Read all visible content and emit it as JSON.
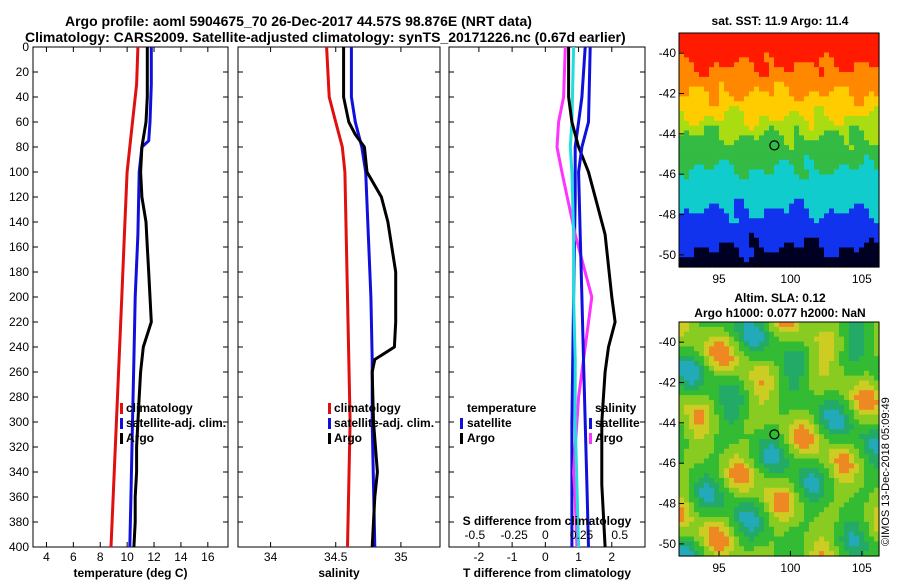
{
  "header": {
    "line1": "Argo profile: aoml 5904675_70 26-Dec-2017 44.57S 98.876E (NRT data)",
    "line2": "Climatology: CARS2009. Satellite-adjusted climatology: synTS_20171226.nc (0.67d earlier)"
  },
  "colors": {
    "climatology": "#e01010",
    "satellite": "#1010dd",
    "argo": "#000000",
    "salinity_diff_climatology": "#ff33ff",
    "temperature_diff_satellite": "#22dddd"
  },
  "chart_data": [
    {
      "type": "line",
      "name": "temperature-profile",
      "xlabel": "temperature (deg C)",
      "ylabel": "",
      "xlim": [
        3,
        17.5
      ],
      "ylim": [
        400,
        0
      ],
      "xticks": [
        4,
        6,
        8,
        10,
        12,
        14,
        16
      ],
      "yticks": [
        0,
        20,
        40,
        60,
        80,
        100,
        120,
        140,
        160,
        180,
        200,
        220,
        240,
        260,
        280,
        300,
        320,
        340,
        360,
        380,
        400
      ],
      "legend": [
        "climatology",
        "satellite-adj. clim.",
        "Argo"
      ],
      "series": [
        {
          "name": "climatology",
          "depth": [
            0,
            30,
            60,
            80,
            100,
            150,
            200,
            250,
            300,
            350,
            400
          ],
          "values": [
            10.8,
            10.7,
            10.4,
            10.2,
            10.0,
            9.8,
            9.6,
            9.4,
            9.2,
            9.0,
            8.8
          ]
        },
        {
          "name": "satellite-adj. clim.",
          "depth": [
            0,
            30,
            60,
            75,
            80,
            100,
            150,
            200,
            250,
            300,
            350,
            400
          ],
          "values": [
            11.8,
            11.8,
            11.7,
            11.6,
            11.1,
            10.9,
            10.8,
            10.6,
            10.5,
            10.4,
            10.3,
            10.2
          ]
        },
        {
          "name": "Argo",
          "depth": [
            0,
            40,
            60,
            80,
            100,
            120,
            140,
            160,
            180,
            200,
            220,
            240,
            260,
            280,
            300,
            320,
            340,
            360,
            380,
            400
          ],
          "values": [
            11.5,
            11.5,
            11.4,
            11.1,
            11.0,
            11.1,
            11.4,
            11.5,
            11.6,
            11.7,
            11.8,
            11.2,
            11.0,
            10.9,
            10.8,
            10.7,
            10.7,
            10.6,
            10.6,
            10.5
          ]
        }
      ]
    },
    {
      "type": "line",
      "name": "salinity-profile",
      "xlabel": "salinity",
      "xlim": [
        33.75,
        35.3
      ],
      "ylim": [
        400,
        0
      ],
      "xticks": [
        34,
        34.5,
        35
      ],
      "legend": [
        "climatology",
        "satellite-adj. clim.",
        "Argo"
      ],
      "series": [
        {
          "name": "climatology",
          "depth": [
            0,
            40,
            60,
            80,
            100,
            150,
            200,
            250,
            300,
            350,
            400
          ],
          "values": [
            34.43,
            34.45,
            34.5,
            34.55,
            34.57,
            34.58,
            34.59,
            34.6,
            34.61,
            34.6,
            34.59
          ]
        },
        {
          "name": "satellite-adj. clim.",
          "depth": [
            0,
            40,
            60,
            80,
            100,
            150,
            200,
            250,
            300,
            350,
            400
          ],
          "values": [
            34.62,
            34.62,
            34.65,
            34.7,
            34.73,
            34.75,
            34.77,
            34.78,
            34.78,
            34.79,
            34.8
          ]
        },
        {
          "name": "Argo",
          "depth": [
            0,
            40,
            60,
            70,
            80,
            100,
            120,
            140,
            160,
            180,
            200,
            220,
            240,
            250,
            260,
            300,
            340,
            360,
            380,
            400
          ],
          "values": [
            34.56,
            34.56,
            34.6,
            34.65,
            34.72,
            34.74,
            34.85,
            34.9,
            34.93,
            34.96,
            34.96,
            34.96,
            34.95,
            34.8,
            34.78,
            34.79,
            34.82,
            34.8,
            34.79,
            34.78
          ]
        }
      ]
    },
    {
      "type": "line",
      "name": "difference-profile",
      "xlabel": "T difference from climatology",
      "xlabel_top": "S difference from climatology",
      "xlim": [
        -2.9,
        3
      ],
      "ylim": [
        400,
        0
      ],
      "xticks": [
        -2,
        -1,
        0,
        1,
        2
      ],
      "top_tick_positions": [
        -2,
        -1,
        0,
        1,
        2
      ],
      "top_tick_labels": [
        "-0.5",
        "-0.25",
        "0",
        "0.25",
        "0.5"
      ],
      "legend": [
        "temperature",
        "satellite",
        "Argo",
        "salinity",
        "satellite",
        "Argo"
      ],
      "series": [
        {
          "name": "S satellite diff",
          "depth": [
            0,
            40,
            60,
            80,
            120,
            200,
            300,
            360,
            400
          ],
          "values": [
            1.2,
            1.1,
            1.0,
            0.9,
            0.9,
            0.85,
            0.8,
            0.8,
            0.8
          ]
        },
        {
          "name": "S Argo diff",
          "depth": [
            0,
            40,
            60,
            80,
            100,
            150,
            200,
            240,
            260,
            280,
            300,
            320,
            340,
            360,
            400
          ],
          "values": [
            0.6,
            0.55,
            0.4,
            0.35,
            0.5,
            0.9,
            1.4,
            1.2,
            1.1,
            1.0,
            0.95,
            0.9,
            0.85,
            0.9,
            0.95
          ]
        },
        {
          "name": "T satellite diff",
          "depth": [
            0,
            60,
            80,
            100,
            150,
            200,
            250,
            300,
            350,
            400
          ],
          "values": [
            0.85,
            0.8,
            0.75,
            0.8,
            0.85,
            0.85,
            0.9,
            0.9,
            0.95,
            1.0
          ]
        },
        {
          "name": "T Argo diff",
          "depth": [
            0,
            40,
            60,
            80,
            100,
            130,
            150,
            200,
            220,
            240,
            260,
            300,
            350,
            400
          ],
          "values": [
            0.7,
            0.7,
            0.8,
            1.0,
            1.3,
            1.6,
            1.8,
            2.0,
            2.1,
            1.9,
            1.8,
            1.7,
            1.7,
            1.8
          ]
        },
        {
          "name": "T satellite vs clim",
          "depth": [
            0,
            60,
            80,
            100,
            150,
            200,
            250,
            300,
            350,
            400
          ],
          "values": [
            1.35,
            1.3,
            1.1,
            1.0,
            1.05,
            1.1,
            1.15,
            1.2,
            1.25,
            1.3
          ]
        }
      ]
    },
    {
      "type": "heatmap",
      "name": "sst-map",
      "title": "sat. SST: 11.9 Argo: 11.4",
      "xticks": [
        95,
        100,
        105
      ],
      "yticks": [
        -40,
        -42,
        -44,
        -46,
        -48,
        -50
      ],
      "xlim": [
        92.2,
        106.2
      ],
      "ylim": [
        -50.6,
        -39.0
      ],
      "marker": {
        "lon": 98.876,
        "lat": -44.57
      }
    },
    {
      "type": "heatmap",
      "name": "sla-map",
      "title_line1": "Altim. SLA: 0.12",
      "title_line2": "Argo h1000: 0.077 h2000: NaN",
      "xticks": [
        95,
        100,
        105
      ],
      "yticks": [
        -40,
        -42,
        -44,
        -46,
        -48,
        -50
      ],
      "xlim": [
        92.2,
        106.2
      ],
      "ylim": [
        -50.6,
        -39.0
      ],
      "marker": {
        "lon": 98.876,
        "lat": -44.57
      }
    }
  ],
  "credit": "©IMOS 13-Dec-2018 05:09:49"
}
